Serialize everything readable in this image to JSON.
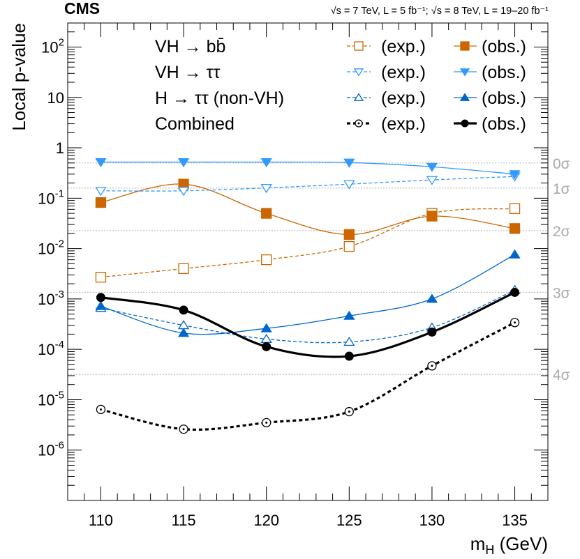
{
  "header": {
    "experiment": "CMS",
    "energy_lumi": "√s = 7 TeV, L = 5 fb⁻¹; √s = 8 TeV, L = 19–20 fb⁻¹"
  },
  "legend": {
    "entries": [
      {
        "label": "VH → bb̄",
        "exp": "(exp.)",
        "obs": "(obs.)",
        "color": "#cc6600",
        "marker_exp": "open-square",
        "marker_obs": "filled-square"
      },
      {
        "label": "VH → ττ",
        "exp": "(exp.)",
        "obs": "(obs.)",
        "color": "#3399ff",
        "marker_exp": "open-triangle-down",
        "marker_obs": "filled-triangle-down"
      },
      {
        "label": "H → ττ (non-VH)",
        "exp": "(exp.)",
        "obs": "(obs.)",
        "color": "#0066cc",
        "marker_exp": "open-triangle-up",
        "marker_obs": "filled-triangle-up"
      },
      {
        "label": "Combined",
        "exp": "(exp.)",
        "obs": "(obs.)",
        "color": "#000000",
        "marker_exp": "open-circle-dot",
        "marker_obs": "filled-circle"
      }
    ]
  },
  "sigma_lines": [
    {
      "label": "0σ",
      "p": 0.5
    },
    {
      "label": "1σ",
      "p": 0.1587
    },
    {
      "label": "2σ",
      "p": 0.02275
    },
    {
      "label": "3σ",
      "p": 0.00135
    },
    {
      "label": "4σ",
      "p": 3.17e-05
    }
  ],
  "chart_data": {
    "type": "line",
    "title": "",
    "xlabel": "m_H (GeV)",
    "ylabel": "Local p-value",
    "xlim": [
      108,
      137
    ],
    "ylim": [
      1e-07,
      300
    ],
    "yscale": "log",
    "x_ticks": [
      "110",
      "115",
      "120",
      "125",
      "130",
      "135"
    ],
    "y_ticks": [
      {
        "value": 1e-06,
        "base": "10",
        "exp": "-6"
      },
      {
        "value": 1e-05,
        "base": "10",
        "exp": "-5"
      },
      {
        "value": 0.0001,
        "base": "10",
        "exp": "-4"
      },
      {
        "value": 0.001,
        "base": "10",
        "exp": "-3"
      },
      {
        "value": 0.01,
        "base": "10",
        "exp": "-2"
      },
      {
        "value": 0.1,
        "base": "10",
        "exp": "-1"
      },
      {
        "value": 1,
        "base": "1",
        "exp": ""
      },
      {
        "value": 10,
        "base": "10",
        "exp": ""
      },
      {
        "value": 100,
        "base": "10",
        "exp": "2"
      }
    ],
    "x": [
      110,
      115,
      120,
      125,
      130,
      135
    ],
    "series": [
      {
        "name": "VH → bb̄ (exp.)",
        "color": "#cc6600",
        "dash": true,
        "width": 1.3,
        "marker": "open-square",
        "values": [
          0.0027,
          0.004,
          0.006,
          0.011,
          0.05,
          0.062
        ]
      },
      {
        "name": "VH → bb̄ (obs.)",
        "color": "#cc6600",
        "dash": false,
        "width": 1.3,
        "marker": "filled-square",
        "values": [
          0.082,
          0.19,
          0.05,
          0.019,
          0.044,
          0.025
        ]
      },
      {
        "name": "VH → ττ (exp.)",
        "color": "#3399ff",
        "dash": true,
        "width": 1.3,
        "marker": "open-triangle-down",
        "values": [
          0.14,
          0.14,
          0.16,
          0.19,
          0.23,
          0.27
        ]
      },
      {
        "name": "VH → ττ (obs.)",
        "color": "#3399ff",
        "dash": false,
        "width": 1.3,
        "marker": "filled-triangle-down",
        "values": [
          0.52,
          0.52,
          0.52,
          0.51,
          0.42,
          0.3
        ]
      },
      {
        "name": "H → ττ (non-VH) (exp.)",
        "color": "#0066cc",
        "dash": true,
        "width": 1.3,
        "marker": "open-triangle-up",
        "values": [
          0.00066,
          0.0003,
          0.00016,
          0.00014,
          0.00027,
          0.0015
        ]
      },
      {
        "name": "H → ττ (non-VH) (obs.)",
        "color": "#0066cc",
        "dash": false,
        "width": 1.3,
        "marker": "filled-triangle-up",
        "values": [
          0.00072,
          0.00021,
          0.00026,
          0.00046,
          0.001,
          0.0076
        ]
      },
      {
        "name": "Combined (exp.)",
        "color": "#000000",
        "dash": true,
        "width": 3.2,
        "marker": "open-circle-dot",
        "values": [
          6.4e-06,
          2.6e-06,
          3.5e-06,
          5.8e-06,
          4.7e-05,
          0.00034
        ]
      },
      {
        "name": "Combined (obs.)",
        "color": "#000000",
        "dash": false,
        "width": 3.2,
        "marker": "filled-circle",
        "values": [
          0.00107,
          0.0006,
          0.000113,
          7.3e-05,
          0.00022,
          0.00135
        ]
      }
    ]
  }
}
